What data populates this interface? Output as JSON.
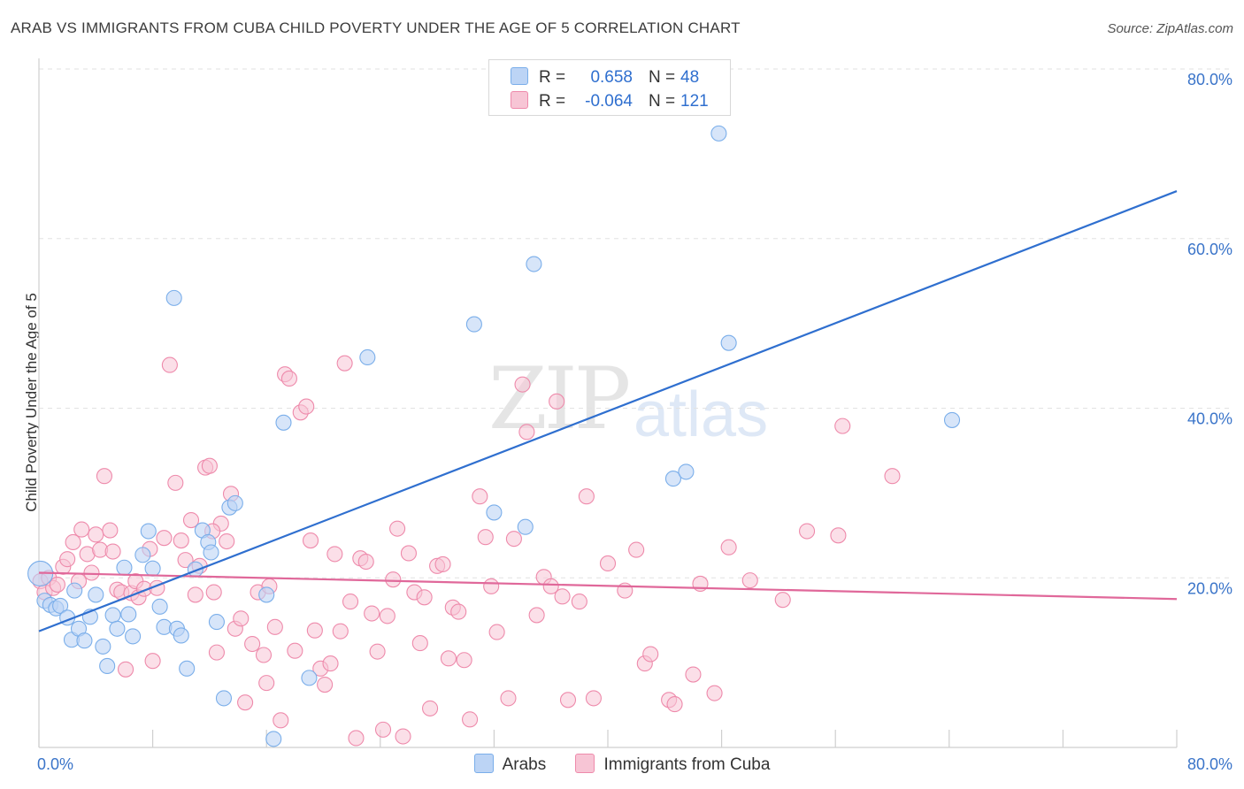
{
  "title": "ARAB VS IMMIGRANTS FROM CUBA CHILD POVERTY UNDER THE AGE OF 5 CORRELATION CHART",
  "source": "Source: ZipAtlas.com",
  "watermark": {
    "zip": "ZIP",
    "atlas": "atlas"
  },
  "colors": {
    "arabs": "#7aaeea",
    "arabs_fill": "#bcd4f5",
    "cuba": "#ee8aab",
    "cuba_fill": "#f7c5d5",
    "arabs_line": "#2f6fcf",
    "cuba_line": "#e0689a",
    "tick": "#3a74c9"
  },
  "legend_top": [
    {
      "label": "R =",
      "r": "0.658",
      "n_label": "N =",
      "n": "48"
    },
    {
      "label": "R =",
      "r": "-0.064",
      "n_label": "N =",
      "n": "121"
    }
  ],
  "legend_bottom": [
    "Arabs",
    "Immigrants from Cuba"
  ],
  "chart_data": {
    "type": "scatter",
    "title": "ARAB VS IMMIGRANTS FROM CUBA CHILD POVERTY UNDER THE AGE OF 5 CORRELATION CHART",
    "xlabel": "",
    "ylabel": "Child Poverty Under the Age of 5",
    "xlim": [
      0,
      80
    ],
    "ylim": [
      0,
      80
    ],
    "x_tick_labels": [
      "0.0%",
      "80.0%"
    ],
    "y_tick_labels": [
      "20.0%",
      "40.0%",
      "60.0%",
      "80.0%"
    ],
    "y_ticks": [
      20,
      40,
      60,
      80
    ],
    "grid": true,
    "series": [
      {
        "name": "Arabs",
        "points": [
          [
            0.1,
            20.5
          ],
          [
            0.4,
            17.3
          ],
          [
            0.8,
            16.8
          ],
          [
            1.2,
            16.4
          ],
          [
            1.5,
            16.7
          ],
          [
            2.0,
            15.3
          ],
          [
            2.3,
            12.7
          ],
          [
            2.8,
            14.0
          ],
          [
            3.2,
            12.6
          ],
          [
            3.6,
            15.4
          ],
          [
            4.0,
            18.0
          ],
          [
            4.5,
            11.9
          ],
          [
            4.8,
            9.6
          ],
          [
            5.2,
            15.6
          ],
          [
            5.5,
            14.0
          ],
          [
            6.0,
            21.2
          ],
          [
            6.3,
            15.7
          ],
          [
            6.6,
            13.1
          ],
          [
            7.3,
            22.7
          ],
          [
            7.7,
            25.5
          ],
          [
            8.0,
            21.1
          ],
          [
            8.5,
            16.6
          ],
          [
            8.8,
            14.2
          ],
          [
            9.5,
            53.0
          ],
          [
            9.7,
            14.0
          ],
          [
            10.0,
            13.2
          ],
          [
            10.4,
            9.3
          ],
          [
            11.0,
            21.0
          ],
          [
            11.5,
            25.6
          ],
          [
            11.9,
            24.2
          ],
          [
            12.1,
            23.0
          ],
          [
            12.5,
            14.8
          ],
          [
            13.4,
            28.3
          ],
          [
            13.8,
            28.8
          ],
          [
            13.0,
            5.8
          ],
          [
            16.0,
            18.0
          ],
          [
            16.5,
            1.0
          ],
          [
            17.2,
            38.3
          ],
          [
            19.0,
            8.2
          ],
          [
            23.1,
            46.0
          ],
          [
            30.6,
            49.9
          ],
          [
            32.0,
            27.7
          ],
          [
            34.2,
            26.0
          ],
          [
            34.8,
            57.0
          ],
          [
            44.6,
            31.7
          ],
          [
            45.5,
            32.5
          ],
          [
            47.8,
            72.4
          ],
          [
            48.5,
            47.7
          ],
          [
            64.2,
            38.6
          ],
          [
            2.5,
            18.5
          ]
        ]
      },
      {
        "name": "Immigrants from Cuba",
        "points": [
          [
            0.1,
            19.6
          ],
          [
            0.4,
            18.3
          ],
          [
            0.7,
            20.0
          ],
          [
            1.0,
            18.8
          ],
          [
            1.3,
            19.2
          ],
          [
            1.7,
            21.3
          ],
          [
            2.0,
            22.2
          ],
          [
            2.4,
            24.2
          ],
          [
            2.8,
            19.6
          ],
          [
            3.0,
            25.7
          ],
          [
            3.4,
            22.8
          ],
          [
            3.7,
            20.6
          ],
          [
            4.0,
            25.1
          ],
          [
            4.3,
            23.3
          ],
          [
            4.6,
            32.0
          ],
          [
            5.0,
            25.6
          ],
          [
            5.2,
            23.1
          ],
          [
            5.5,
            18.6
          ],
          [
            5.8,
            18.3
          ],
          [
            6.1,
            9.2
          ],
          [
            6.5,
            18.2
          ],
          [
            6.8,
            19.6
          ],
          [
            7.0,
            17.7
          ],
          [
            7.4,
            18.7
          ],
          [
            7.8,
            23.4
          ],
          [
            8.0,
            10.2
          ],
          [
            8.3,
            18.8
          ],
          [
            8.8,
            24.7
          ],
          [
            9.2,
            45.1
          ],
          [
            9.6,
            31.2
          ],
          [
            10.0,
            24.4
          ],
          [
            10.3,
            22.1
          ],
          [
            10.7,
            26.8
          ],
          [
            11.0,
            18.0
          ],
          [
            11.3,
            21.4
          ],
          [
            11.7,
            33.0
          ],
          [
            12.0,
            33.2
          ],
          [
            12.3,
            18.3
          ],
          [
            12.5,
            11.2
          ],
          [
            12.8,
            26.4
          ],
          [
            13.2,
            24.3
          ],
          [
            13.5,
            29.9
          ],
          [
            13.8,
            14.0
          ],
          [
            14.2,
            15.2
          ],
          [
            14.5,
            5.3
          ],
          [
            15.0,
            12.2
          ],
          [
            15.4,
            18.3
          ],
          [
            15.8,
            10.9
          ],
          [
            16.0,
            7.6
          ],
          [
            16.2,
            19.0
          ],
          [
            16.6,
            14.2
          ],
          [
            17.0,
            3.2
          ],
          [
            17.3,
            44.0
          ],
          [
            17.6,
            43.5
          ],
          [
            18.0,
            11.4
          ],
          [
            18.4,
            39.5
          ],
          [
            18.8,
            40.2
          ],
          [
            19.1,
            24.4
          ],
          [
            19.4,
            13.8
          ],
          [
            19.8,
            9.3
          ],
          [
            20.1,
            7.4
          ],
          [
            20.5,
            9.9
          ],
          [
            20.8,
            22.8
          ],
          [
            21.2,
            13.7
          ],
          [
            21.5,
            45.3
          ],
          [
            21.9,
            17.2
          ],
          [
            22.3,
            1.1
          ],
          [
            22.6,
            22.3
          ],
          [
            23.0,
            21.9
          ],
          [
            23.4,
            15.8
          ],
          [
            23.8,
            11.3
          ],
          [
            24.2,
            2.1
          ],
          [
            24.5,
            15.5
          ],
          [
            24.9,
            19.8
          ],
          [
            25.2,
            25.8
          ],
          [
            25.6,
            1.3
          ],
          [
            26.0,
            22.9
          ],
          [
            26.4,
            18.3
          ],
          [
            26.8,
            12.3
          ],
          [
            27.1,
            17.7
          ],
          [
            27.5,
            4.6
          ],
          [
            28.0,
            21.4
          ],
          [
            28.4,
            21.6
          ],
          [
            28.8,
            10.5
          ],
          [
            29.1,
            16.5
          ],
          [
            29.5,
            16.0
          ],
          [
            29.9,
            10.3
          ],
          [
            30.3,
            3.3
          ],
          [
            31.0,
            29.6
          ],
          [
            31.4,
            24.8
          ],
          [
            31.8,
            19.0
          ],
          [
            32.2,
            13.6
          ],
          [
            33.0,
            5.8
          ],
          [
            33.4,
            24.6
          ],
          [
            34.0,
            42.8
          ],
          [
            34.3,
            37.2
          ],
          [
            35.0,
            15.6
          ],
          [
            35.5,
            20.1
          ],
          [
            36.0,
            19.0
          ],
          [
            36.4,
            40.8
          ],
          [
            36.8,
            17.8
          ],
          [
            37.2,
            5.6
          ],
          [
            38.0,
            17.2
          ],
          [
            38.5,
            29.6
          ],
          [
            39.0,
            5.8
          ],
          [
            40.0,
            21.7
          ],
          [
            41.2,
            18.5
          ],
          [
            42.0,
            23.3
          ],
          [
            42.6,
            9.9
          ],
          [
            43.0,
            11.0
          ],
          [
            44.3,
            5.6
          ],
          [
            44.7,
            5.1
          ],
          [
            46.0,
            8.6
          ],
          [
            46.5,
            19.3
          ],
          [
            47.5,
            6.4
          ],
          [
            48.5,
            23.6
          ],
          [
            50.0,
            19.7
          ],
          [
            52.3,
            17.4
          ],
          [
            54.0,
            25.5
          ],
          [
            56.2,
            25.0
          ],
          [
            56.5,
            37.9
          ],
          [
            60.0,
            32.0
          ],
          [
            12.2,
            25.5
          ]
        ]
      }
    ],
    "trend_lines": [
      {
        "name": "Arabs",
        "from": [
          0,
          13.7
        ],
        "to": [
          80,
          65.6
        ]
      },
      {
        "name": "Immigrants from Cuba",
        "from": [
          0,
          20.6
        ],
        "to": [
          80,
          17.5
        ]
      }
    ]
  }
}
